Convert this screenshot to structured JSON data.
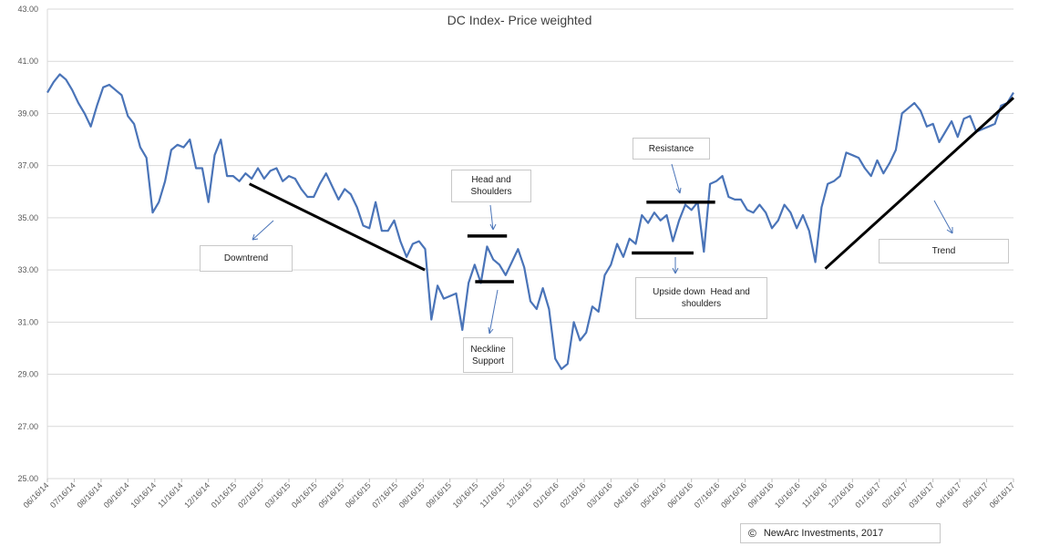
{
  "chart_data": {
    "type": "line",
    "title": "DC Index- Price weighted",
    "xlabel": "",
    "ylabel": "",
    "ylim": [
      25,
      43
    ],
    "y_ticks": [
      "25.00",
      "27.00",
      "29.00",
      "31.00",
      "33.00",
      "35.00",
      "37.00",
      "39.00",
      "41.00",
      "43.00"
    ],
    "x_ticks": [
      "06/16/14",
      "07/16/14",
      "08/16/14",
      "09/16/14",
      "10/16/14",
      "11/16/14",
      "12/16/14",
      "01/16/15",
      "02/16/15",
      "03/16/15",
      "04/16/15",
      "05/16/15",
      "06/16/15",
      "07/16/15",
      "08/16/15",
      "09/16/15",
      "10/16/15",
      "11/16/15",
      "12/16/15",
      "01/16/16",
      "02/16/16",
      "03/16/16",
      "04/16/16",
      "05/16/16",
      "06/16/16",
      "07/16/16",
      "08/16/16",
      "09/16/16",
      "10/16/16",
      "11/16/16",
      "12/16/16",
      "01/16/17",
      "02/16/17",
      "03/16/17",
      "04/16/17",
      "05/16/17",
      "06/16/17"
    ],
    "grid": "horizontal",
    "line_color": "#4a74b8",
    "series": [
      {
        "name": "",
        "values": [
          39.8,
          40.2,
          40.5,
          40.3,
          39.9,
          39.4,
          39.0,
          38.5,
          39.3,
          40.0,
          40.1,
          39.9,
          39.7,
          38.9,
          38.6,
          37.7,
          37.3,
          35.2,
          35.6,
          36.4,
          37.6,
          37.8,
          37.7,
          38.0,
          36.9,
          36.9,
          35.6,
          37.4,
          38.0,
          36.6,
          36.6,
          36.4,
          36.7,
          36.5,
          36.9,
          36.5,
          36.8,
          36.9,
          36.4,
          36.6,
          36.5,
          36.1,
          35.8,
          35.8,
          36.3,
          36.7,
          36.2,
          35.7,
          36.1,
          35.9,
          35.4,
          34.7,
          34.6,
          35.6,
          34.5,
          34.5,
          34.9,
          34.1,
          33.5,
          34.0,
          34.1,
          33.8,
          31.1,
          32.4,
          31.9,
          32.0,
          32.1,
          30.7,
          32.5,
          33.2,
          32.5,
          33.9,
          33.4,
          33.2,
          32.8,
          33.3,
          33.8,
          33.1,
          31.8,
          31.5,
          32.3,
          31.5,
          29.6,
          29.2,
          29.4,
          31.0,
          30.3,
          30.6,
          31.6,
          31.4,
          32.8,
          33.2,
          34.0,
          33.5,
          34.2,
          34.0,
          35.1,
          34.8,
          35.2,
          34.9,
          35.1,
          34.1,
          34.9,
          35.5,
          35.3,
          35.6,
          33.7,
          36.3,
          36.4,
          36.6,
          35.8,
          35.7,
          35.7,
          35.3,
          35.2,
          35.5,
          35.2,
          34.6,
          34.9,
          35.5,
          35.2,
          34.6,
          35.1,
          34.5,
          33.3,
          35.4,
          36.3,
          36.4,
          36.6,
          37.5,
          37.4,
          37.3,
          36.9,
          36.6,
          37.2,
          36.7,
          37.1,
          37.6,
          39.0,
          39.2,
          39.4,
          39.1,
          38.5,
          38.6,
          37.9,
          38.3,
          38.7,
          38.1,
          38.8,
          38.9,
          38.3,
          38.4,
          38.5,
          38.6,
          39.3,
          39.4,
          39.8
        ]
      }
    ],
    "trendlines": [
      {
        "label": "downtrend",
        "from": [
          0.2091,
          36.3
        ],
        "to": [
          0.3907,
          33.0
        ]
      },
      {
        "label": "uptrend",
        "from": [
          0.8052,
          33.05
        ],
        "to": [
          1.0,
          39.6
        ]
      }
    ],
    "levels": [
      {
        "label": "head-and-shoulders-top",
        "x": [
          0.4348,
          0.4757
        ],
        "y": 34.3
      },
      {
        "label": "neckline-support",
        "x": [
          0.4428,
          0.4829
        ],
        "y": 32.55
      },
      {
        "label": "resistance",
        "x": [
          0.6201,
          0.6912
        ],
        "y": 35.6
      },
      {
        "label": "upside-down-hs-bottom",
        "x": [
          0.6049,
          0.6688
        ],
        "y": 33.65
      }
    ]
  },
  "annotations": {
    "downtrend": "Downtrend",
    "head_and_shoulders_1": "Head and",
    "head_and_shoulders_2": "Shoulders",
    "neckline_1": "Neckline",
    "neckline_2": "Support",
    "resistance": "Resistance",
    "upside_down_1": "Upside down  Head and",
    "upside_down_2": "shoulders",
    "trend": "Trend"
  },
  "copyright": {
    "symbol": "©",
    "text": "NewArc Investments, 2017"
  }
}
